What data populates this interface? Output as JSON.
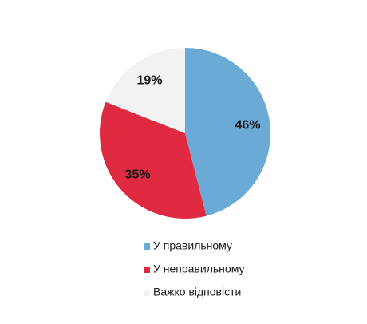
{
  "chart_data": {
    "type": "pie",
    "categories": [
      "У правильному",
      "У неправильному",
      "Важко відповісти"
    ],
    "values": [
      46,
      35,
      19
    ],
    "value_labels": [
      "46%",
      "35%",
      "19%"
    ],
    "colors": [
      "#6aaad5",
      "#e02a42",
      "#f2f2f2"
    ]
  }
}
